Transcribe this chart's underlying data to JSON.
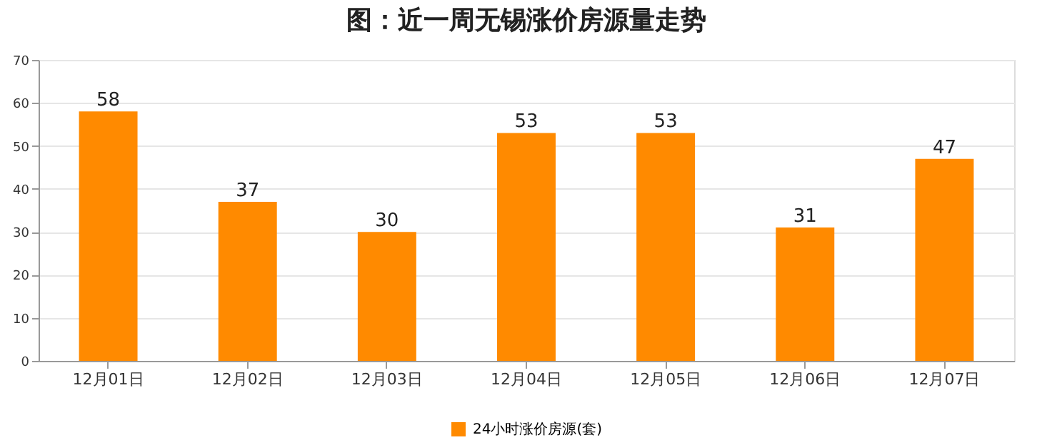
{
  "chart_data": {
    "type": "bar",
    "title": "图：近一周无锡涨价房源量走势",
    "categories": [
      "12月01日",
      "12月02日",
      "12月03日",
      "12月04日",
      "12月05日",
      "12月06日",
      "12月07日"
    ],
    "series": [
      {
        "name": "24小时涨价房源(套)",
        "color": "#ff8a00",
        "values": [
          58,
          37,
          30,
          53,
          53,
          31,
          47
        ]
      }
    ],
    "ylim": [
      0,
      70
    ],
    "yticks": [
      0,
      10,
      20,
      30,
      40,
      50,
      60,
      70
    ],
    "grid": "y",
    "legend": "bottom",
    "data_labels": true
  }
}
